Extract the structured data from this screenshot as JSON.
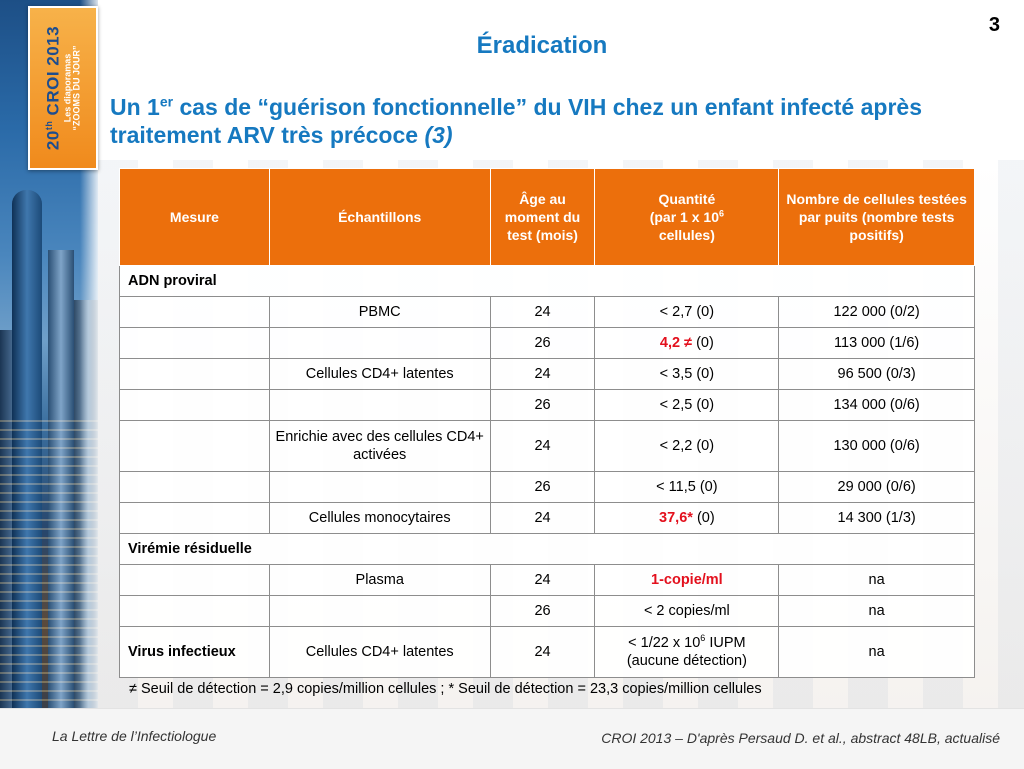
{
  "logo": {
    "line1": "20",
    "line1_sup": "th",
    "line1_rest": " CROI 2013",
    "line2": "Les diaporamas",
    "line3": "“ZOOMS DU JOUR”"
  },
  "page_number": "3",
  "title": "Éradication",
  "subtitle": {
    "part1": "Un 1",
    "sup": "er",
    "part2": " cas de “guérison fonctionnelle” du VIH chez un enfant infecté après traitement ARV très précoce ",
    "ref": "(3)"
  },
  "table": {
    "headers": {
      "mesure": "Mesure",
      "echantillons": "Échantillons",
      "age": "Âge au moment du test (mois)",
      "quantite_line1": "Quantité",
      "quantite_line2": "(par 1 x 10",
      "quantite_sup": "6",
      "quantite_line3": "cellules)",
      "nombre": "Nombre de cellules testées par puits (nombre tests positifs)"
    },
    "section_adn": "ADN proviral",
    "section_viremie": "Virémie résiduelle",
    "rows": [
      {
        "mesure": "",
        "echantillon": "PBMC",
        "age": "24",
        "quantite": "< 2,7 (0)",
        "nombre": "122 000 (0/2)"
      },
      {
        "mesure": "",
        "echantillon": "",
        "age": "26",
        "quantite_red": "4,2 ≠",
        "quantite_rest": " (0)",
        "nombre": "113 000 (1/6)"
      },
      {
        "mesure": "",
        "echantillon": "Cellules CD4+ latentes",
        "age": "24",
        "quantite": "< 3,5 (0)",
        "nombre": "96 500 (0/3)"
      },
      {
        "mesure": "",
        "echantillon": "",
        "age": "26",
        "quantite": "< 2,5 (0)",
        "nombre": "134 000 (0/6)"
      },
      {
        "mesure": "",
        "echantillon": "Enrichie avec des cellules CD4+ activées",
        "age": "24",
        "quantite": "< 2,2 (0)",
        "nombre": "130 000 (0/6)"
      },
      {
        "mesure": "",
        "echantillon": "",
        "age": "26",
        "quantite": "< 11,5 (0)",
        "nombre": "29 000 (0/6)"
      },
      {
        "mesure": "",
        "echantillon": "Cellules monocytaires",
        "age": "24",
        "quantite_red": "37,6*",
        "quantite_rest": " (0)",
        "nombre": "14 300 (1/3)"
      },
      {
        "mesure": "",
        "echantillon": "Plasma",
        "age": "24",
        "quantite_red": "1-copie/ml",
        "nombre": "na"
      },
      {
        "mesure": "",
        "echantillon": "",
        "age": "26",
        "quantite": "< 2 copies/ml",
        "nombre": "na"
      },
      {
        "mesure": "Virus infectieux",
        "echantillon": "Cellules CD4+ latentes",
        "age": "24",
        "quantite_line1": "< 1/22 x 10",
        "quantite_sup": "6",
        "quantite_line1_rest": " IUPM",
        "quantite_line2": "(aucune détection)",
        "nombre": "na"
      }
    ]
  },
  "footnote": "≠ Seuil de détection = 2,9 copies/million cellules ; * Seuil de détection = 23,3 copies/million cellules",
  "footer": {
    "left": "La Lettre de l’Infectiologue",
    "right": "CROI 2013 – D'après Persaud D. et al., abstract 48LB, actualisé"
  }
}
